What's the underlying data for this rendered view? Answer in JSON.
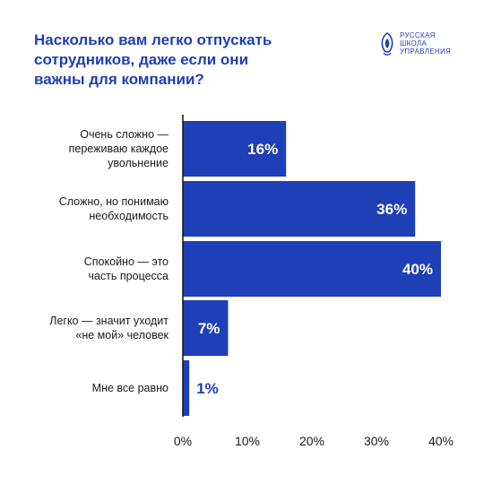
{
  "header": {
    "title_lines": [
      "Насколько вам легко отпускать",
      "сотрудников, даже если они",
      "важны для компании?"
    ],
    "logo_lines": [
      "РУССКАЯ",
      "ШКОЛА",
      "УПРАВЛЕНИЯ"
    ],
    "logo_icon": "ornament-logo-icon"
  },
  "colors": {
    "accent": "#1f3fb6",
    "text": "#1a1a1a",
    "bar_label": "#ffffff"
  },
  "chart_data": {
    "type": "bar",
    "orientation": "horizontal",
    "title": "Насколько вам легко отпускать сотрудников, даже если они важны для компании?",
    "categories": [
      [
        "Очень сложно —",
        "переживаю каждое",
        "увольнение"
      ],
      [
        "Сложно, но понимаю",
        "необходимость"
      ],
      [
        "Спокойно — это",
        "часть процесса"
      ],
      [
        "Легко — значит уходит",
        "«не мой» человек"
      ],
      [
        "Мне все равно"
      ]
    ],
    "values": [
      16,
      36,
      40,
      7,
      1
    ],
    "value_labels": [
      "16%",
      "36%",
      "40%",
      "7%",
      "1%"
    ],
    "xlim": [
      0,
      40
    ],
    "xticks": [
      0,
      10,
      20,
      30,
      40
    ],
    "xtick_labels": [
      "0%",
      "10%",
      "20%",
      "30%",
      "40%"
    ],
    "grid": false,
    "legend": "none"
  }
}
